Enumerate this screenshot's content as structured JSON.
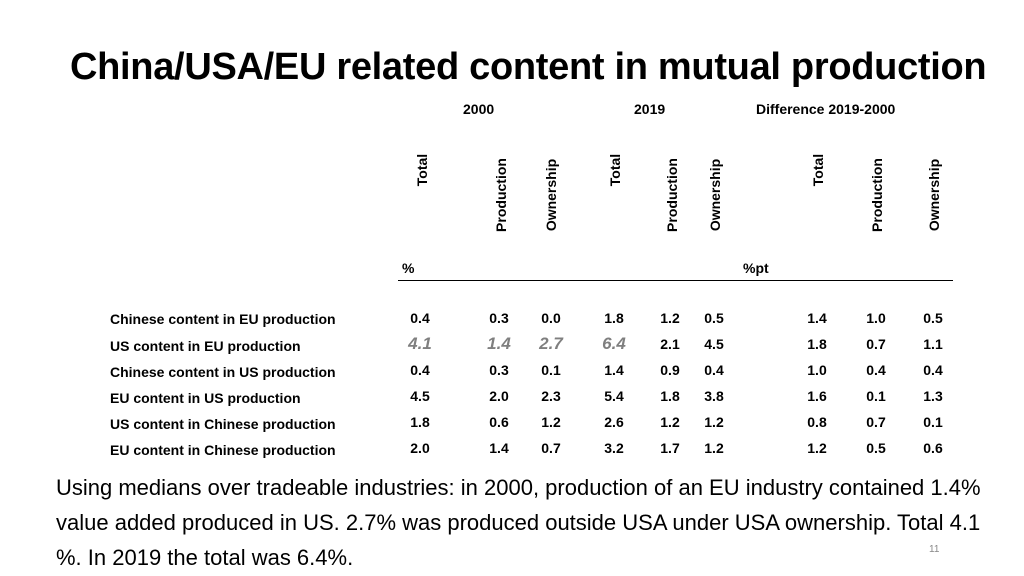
{
  "title": "China/USA/EU related content in mutual production",
  "groups": [
    "2000",
    "2019",
    "Difference 2019-2000"
  ],
  "columns": [
    "Total",
    "Production",
    "Ownership",
    "Total",
    "Production",
    "Ownership",
    "Total",
    "Production",
    "Ownership"
  ],
  "units": [
    "%",
    "%pt"
  ],
  "rows": [
    {
      "label": "Chinese content in EU production",
      "values": [
        "0.4",
        "0.3",
        "0.0",
        "1.8",
        "1.2",
        "0.5",
        "1.4",
        "1.0",
        "0.5"
      ]
    },
    {
      "label": "US content in EU production",
      "values": [
        "4.1",
        "1.4",
        "2.7",
        "6.4",
        "2.1",
        "4.5",
        "1.8",
        "0.7",
        "1.1"
      ]
    },
    {
      "label": "Chinese content in US production",
      "values": [
        "0.4",
        "0.3",
        "0.1",
        "1.4",
        "0.9",
        "0.4",
        "1.0",
        "0.4",
        "0.4"
      ]
    },
    {
      "label": "EU content in US production",
      "values": [
        "4.5",
        "2.0",
        "2.3",
        "5.4",
        "1.8",
        "3.8",
        "1.6",
        "0.1",
        "1.3"
      ]
    },
    {
      "label": "US content in Chinese production",
      "values": [
        "1.8",
        "0.6",
        "1.2",
        "2.6",
        "1.2",
        "1.2",
        "0.8",
        "0.7",
        "0.1"
      ]
    },
    {
      "label": "EU content in Chinese production",
      "values": [
        "2.0",
        "1.4",
        "0.7",
        "3.2",
        "1.7",
        "1.2",
        "1.2",
        "0.5",
        "0.6"
      ]
    }
  ],
  "note": "Using medians over tradeable industries: in 2000, production of an EU industry contained 1.4% value added produced in US. 2.7% was produced outside USA under USA ownership. Total 4.1 %. In 2019 the total was 6.4%.",
  "page_number": "11"
}
